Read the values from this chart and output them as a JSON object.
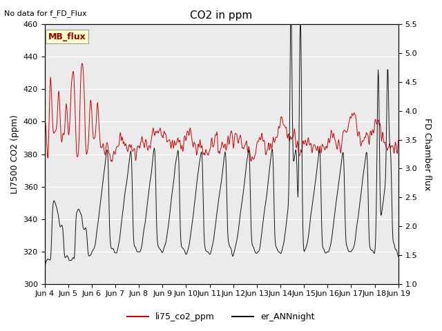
{
  "title": "CO2 in ppm",
  "ylabel_left": "LI7500 CO2 (ppm)",
  "ylabel_right": "FD Chamber flux",
  "top_left_text": "No data for f_FD_Flux",
  "annotation_text": "MB_flux",
  "ylim_left": [
    300,
    460
  ],
  "ylim_right": [
    1.0,
    5.5
  ],
  "yticks_left": [
    300,
    320,
    340,
    360,
    380,
    400,
    420,
    440,
    460
  ],
  "yticks_right": [
    1.0,
    1.5,
    2.0,
    2.5,
    3.0,
    3.5,
    4.0,
    4.5,
    5.0,
    5.5
  ],
  "xticklabels": [
    "Jun 4",
    "Jun 5",
    "Jun 6",
    "Jun 7",
    "Jun 8",
    "Jun 9",
    "Jun 10",
    "Jun 11",
    "Jun 12",
    "Jun 13",
    "Jun 14",
    "Jun 15",
    "Jun 16",
    "Jun 17",
    "Jun 18",
    "Jun 19"
  ],
  "line1_color": "#cc0000",
  "line2_color": "#111111",
  "legend_labels": [
    "li75_co2_ppm",
    "er_ANNnight"
  ],
  "plot_bg_color": "#ebebeb",
  "annotation_bg": "#ffffcc",
  "annotation_border": "#999999"
}
